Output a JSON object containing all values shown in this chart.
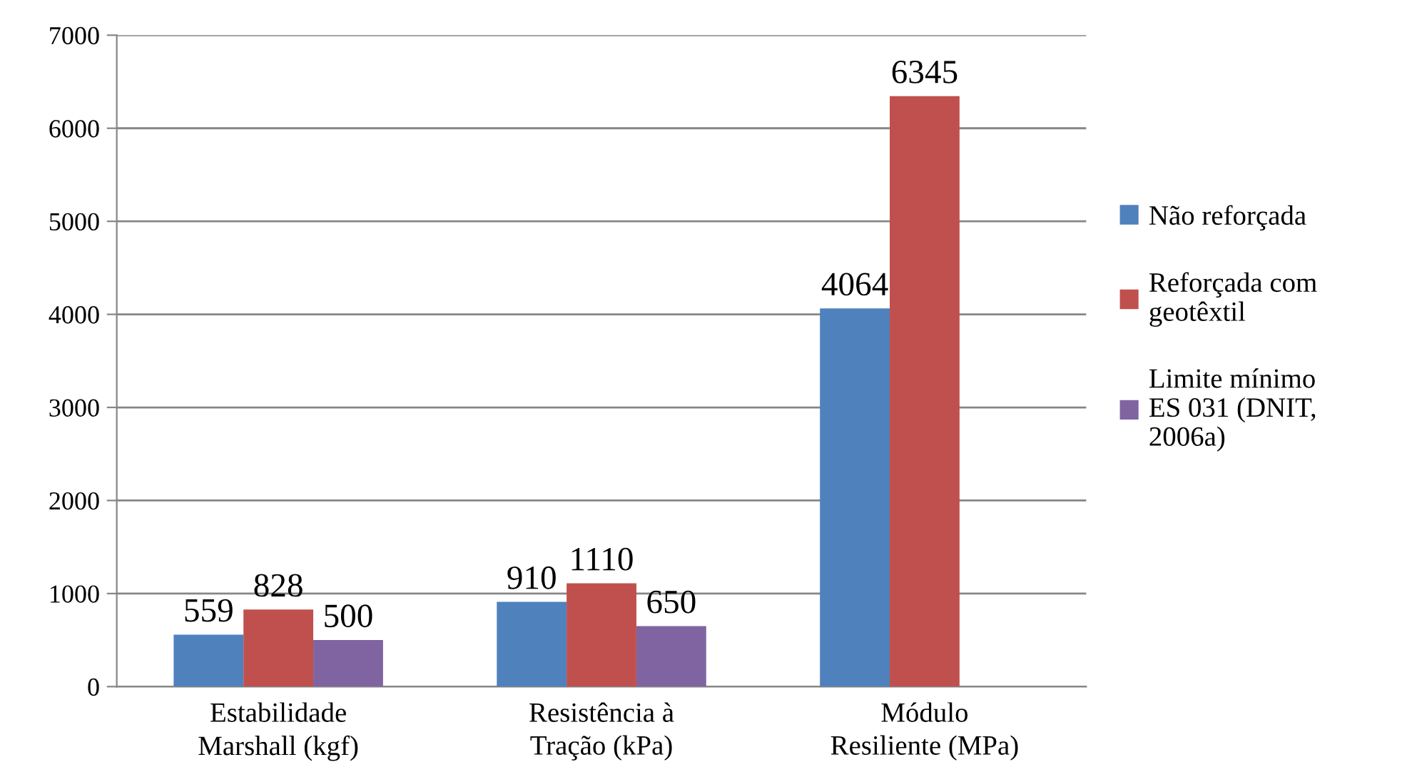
{
  "chart_data": {
    "type": "bar",
    "categories": [
      "Estabilidade\nMarshall (kgf)",
      "Resistência à\nTração (kPa)",
      "Módulo\nResiliente (MPa)"
    ],
    "series": [
      {
        "name": "Não reforçada",
        "color": "#4f81bd",
        "values": [
          559,
          910,
          4064
        ]
      },
      {
        "name": "Reforçada com\ngeotêxtil",
        "color": "#c0504d",
        "values": [
          828,
          1110,
          6345
        ]
      },
      {
        "name": "Limite mínimo\nES 031 (DNIT,\n2006a)",
        "color": "#8064a2",
        "values": [
          500,
          650,
          null
        ]
      }
    ],
    "ylim": [
      0,
      7000
    ],
    "yticks": [
      0,
      1000,
      2000,
      3000,
      4000,
      5000,
      6000,
      7000
    ],
    "grid": "y",
    "legend": "right",
    "data_labels": true
  }
}
